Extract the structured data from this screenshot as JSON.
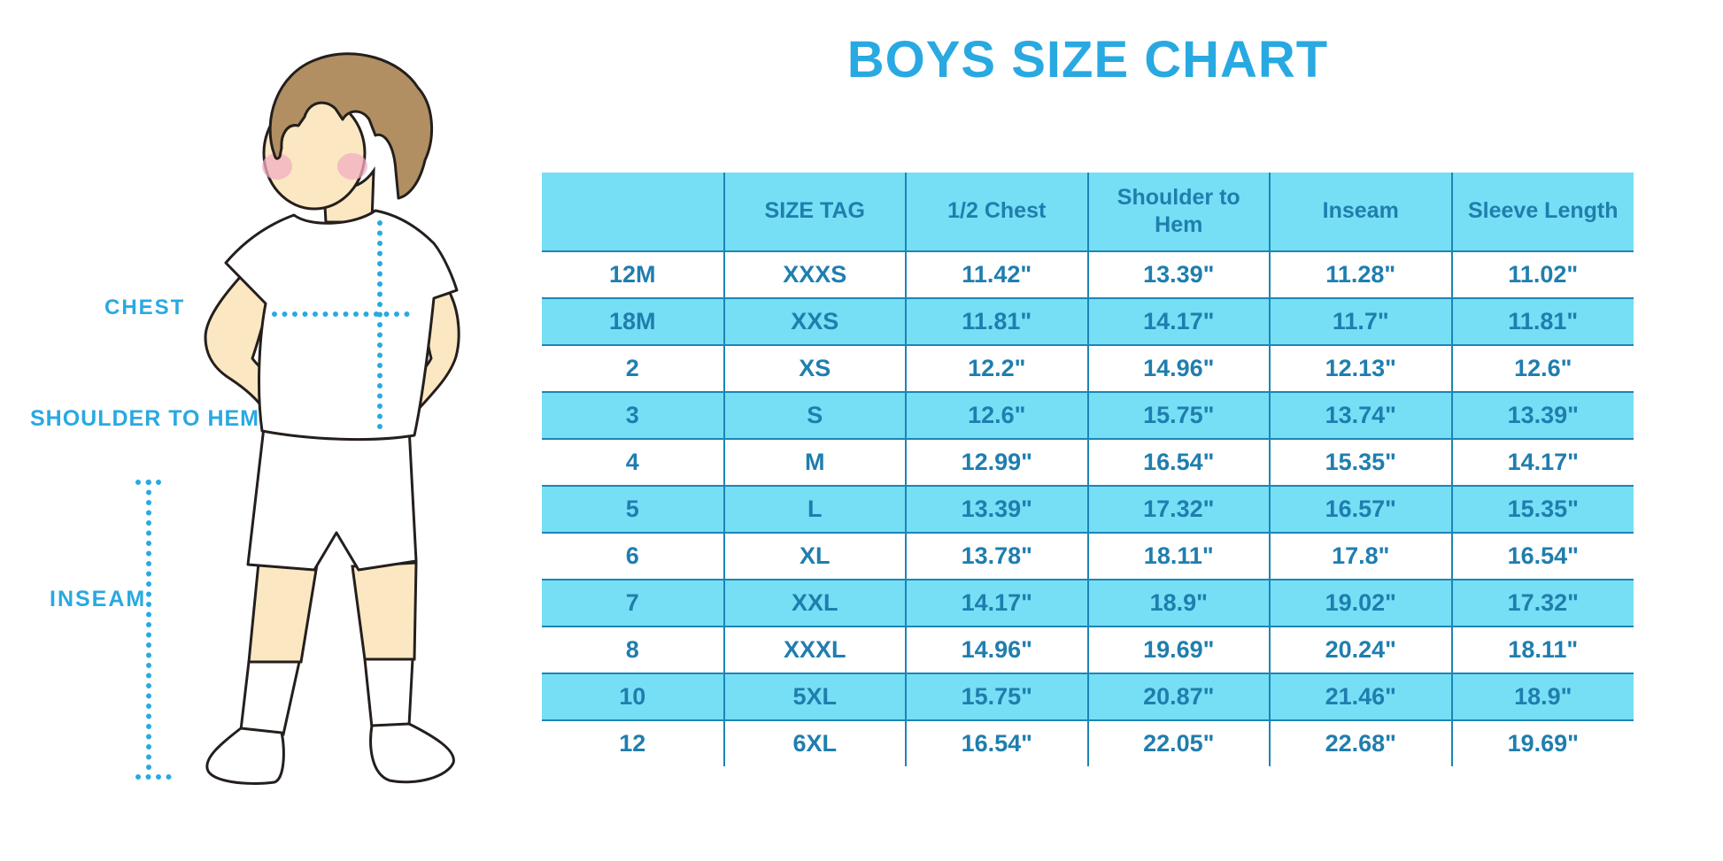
{
  "title": "BOYS SIZE CHART",
  "diagram": {
    "chest_label": "CHEST",
    "shoulder_to_hem_label": "SHOULDER TO HEM",
    "inseam_label": "INSEAM"
  },
  "chart_data": {
    "type": "table",
    "title": "BOYS SIZE CHART",
    "columns": [
      "",
      "SIZE TAG",
      "1/2 Chest",
      "Shoulder to Hem",
      "Inseam",
      "Sleeve Length"
    ],
    "rows": [
      [
        "12M",
        "XXXS",
        "11.42\"",
        "13.39\"",
        "11.28\"",
        "11.02\""
      ],
      [
        "18M",
        "XXS",
        "11.81\"",
        "14.17\"",
        "11.7\"",
        "11.81\""
      ],
      [
        "2",
        "XS",
        "12.2\"",
        "14.96\"",
        "12.13\"",
        "12.6\""
      ],
      [
        "3",
        "S",
        "12.6\"",
        "15.75\"",
        "13.74\"",
        "13.39\""
      ],
      [
        "4",
        "M",
        "12.99\"",
        "16.54\"",
        "15.35\"",
        "14.17\""
      ],
      [
        "5",
        "L",
        "13.39\"",
        "17.32\"",
        "16.57\"",
        "15.35\""
      ],
      [
        "6",
        "XL",
        "13.78\"",
        "18.11\"",
        "17.8\"",
        "16.54\""
      ],
      [
        "7",
        "XXL",
        "14.17\"",
        "18.9\"",
        "19.02\"",
        "17.32\""
      ],
      [
        "8",
        "XXXL",
        "14.96\"",
        "19.69\"",
        "20.24\"",
        "18.11\""
      ],
      [
        "10",
        "5XL",
        "15.75\"",
        "20.87\"",
        "21.46\"",
        "18.9\""
      ],
      [
        "12",
        "6XL",
        "16.54\"",
        "22.05\"",
        "22.68\"",
        "19.69\""
      ]
    ],
    "layout": {
      "alternating_row_colors": [
        "#FFFFFF",
        "#76DFF5"
      ],
      "header_background": "#76DFF5",
      "grid": "on"
    }
  },
  "colors": {
    "accent_blue": "#29A9E1",
    "cell_background": "#76DFF5",
    "table_text": "#1F7EAE",
    "table_border": "#1C85B5",
    "skin": "#FBE7C2",
    "hair": "#B18F63",
    "blush": "#F2AFC0",
    "background": "#FFFFFF"
  }
}
